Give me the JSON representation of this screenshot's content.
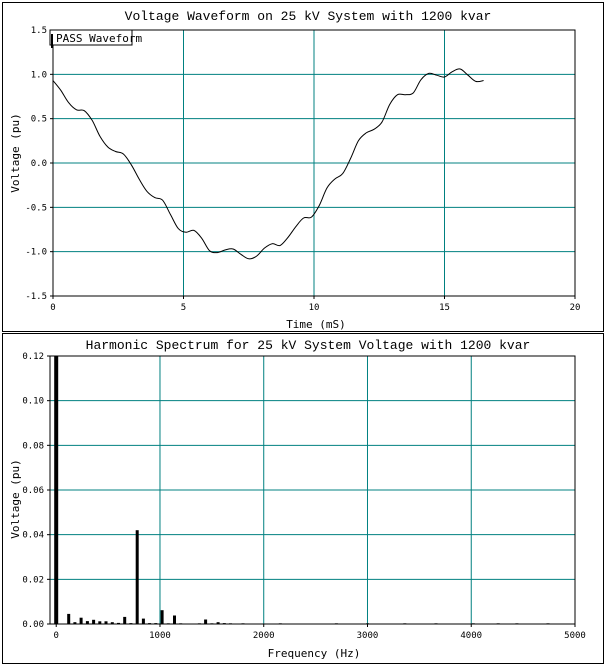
{
  "chart_data": [
    {
      "type": "line",
      "title": "Voltage Waveform on 25 kV System with 1200 kvar",
      "xlabel": "Time (mS)",
      "ylabel": "Voltage (pu)",
      "xlim": [
        0,
        20
      ],
      "ylim": [
        -1.5,
        1.5
      ],
      "xticks": [
        0,
        5,
        10,
        15,
        20
      ],
      "yticks": [
        -1.5,
        -1.0,
        -0.5,
        0.0,
        0.5,
        1.0,
        1.5
      ],
      "ytick_labels": [
        "-1.5",
        "-1.0",
        "-0.5",
        "0.0",
        "0.5",
        "1.0",
        "1.5"
      ],
      "grid": true,
      "grid_color": "#008080",
      "line_color": "#000000",
      "legend": {
        "position": "top-left",
        "entries": [
          "PASS Waveform"
        ]
      },
      "series": [
        {
          "x": [
            0,
            0.3,
            0.6,
            0.9,
            1.2,
            1.5,
            1.8,
            2.1,
            2.4,
            2.7,
            3.0,
            3.3,
            3.6,
            3.9,
            4.2,
            4.5,
            4.8,
            5.1,
            5.4,
            5.7,
            6.0,
            6.3,
            6.6,
            6.9,
            7.2,
            7.5,
            7.8,
            8.1,
            8.4,
            8.7,
            9.0,
            9.3,
            9.6,
            9.9,
            10.2,
            10.5,
            10.8,
            11.1,
            11.4,
            11.7,
            12.0,
            12.3,
            12.6,
            12.9,
            13.2,
            13.5,
            13.8,
            14.1,
            14.4,
            14.7,
            15.0,
            15.3,
            15.6,
            15.9,
            16.2,
            16.5
          ],
          "values": [
            0.93,
            0.82,
            0.68,
            0.6,
            0.59,
            0.48,
            0.3,
            0.18,
            0.13,
            0.1,
            -0.02,
            -0.18,
            -0.32,
            -0.39,
            -0.42,
            -0.58,
            -0.74,
            -0.78,
            -0.76,
            -0.85,
            -0.99,
            -1.01,
            -0.98,
            -0.97,
            -1.03,
            -1.08,
            -1.05,
            -0.96,
            -0.91,
            -0.93,
            -0.84,
            -0.72,
            -0.62,
            -0.61,
            -0.48,
            -0.28,
            -0.18,
            -0.12,
            0.05,
            0.25,
            0.34,
            0.38,
            0.46,
            0.66,
            0.77,
            0.77,
            0.79,
            0.94,
            1.01,
            0.99,
            0.97,
            1.03,
            1.06,
            0.99,
            0.92,
            0.93
          ]
        }
      ]
    },
    {
      "type": "bar",
      "title": "Harmonic Spectrum for 25 kV System Voltage with 1200 kvar",
      "xlabel": "Frequency (Hz)",
      "ylabel": "Voltage (pu)",
      "xlim": [
        -60,
        5000
      ],
      "ylim": [
        0,
        0.12
      ],
      "xticks": [
        0,
        1000,
        2000,
        3000,
        4000,
        5000
      ],
      "yticks": [
        0.0,
        0.02,
        0.04,
        0.06,
        0.08,
        0.1,
        0.12
      ],
      "ytick_labels": [
        "0.00",
        "0.02",
        "0.04",
        "0.06",
        "0.08",
        "0.10",
        "0.12"
      ],
      "grid": true,
      "grid_color": "#008080",
      "bar_color": "#000000",
      "series": [
        {
          "x": [
            0,
            60,
            120,
            180,
            240,
            300,
            360,
            420,
            480,
            540,
            600,
            660,
            720,
            780,
            840,
            900,
            960,
            1020,
            1080,
            1140,
            1200,
            1260,
            1320,
            1380,
            1440,
            1500,
            1560,
            1620,
            1680,
            1740,
            1800,
            1860,
            1920,
            1980,
            2040,
            2100,
            2160,
            2220,
            2280,
            2340,
            2400,
            2460,
            2520,
            2580,
            2640,
            2700,
            2760,
            2820,
            2880,
            2940,
            3000,
            3060,
            3120,
            3180,
            3240,
            3300,
            3360,
            3420,
            3480,
            3540,
            3600,
            3660,
            3720,
            3780,
            3840,
            3900,
            3960,
            4020,
            4080,
            4140,
            4200,
            4260,
            4320,
            4380,
            4440,
            4500,
            4560,
            4620,
            4680,
            4740,
            4800,
            4860,
            4920
          ],
          "values": [
            0.12,
            0.0,
            0.0045,
            0.0008,
            0.0028,
            0.0013,
            0.0019,
            0.0012,
            0.0012,
            0.0008,
            0.0005,
            0.0032,
            0.0004,
            0.042,
            0.0024,
            0.0004,
            0.0004,
            0.0062,
            0.0003,
            0.0038,
            0.0003,
            0.0002,
            0.0002,
            0.0003,
            0.002,
            0.0003,
            0.0008,
            0.0004,
            0.0003,
            0.0002,
            0.0003,
            0.0002,
            0.0002,
            0.0002,
            0.0002,
            0.0002,
            0.0003,
            0.0002,
            0.0002,
            0.0002,
            0.0002,
            0.0002,
            0.0002,
            0.0002,
            0.0002,
            0.0003,
            0.0002,
            0.0002,
            0.0002,
            0.0002,
            0.0003,
            0.0002,
            0.0002,
            0.0002,
            0.0002,
            0.0002,
            0.0003,
            0.0002,
            0.0002,
            0.0002,
            0.0002,
            0.0003,
            0.0002,
            0.0002,
            0.0002,
            0.0002,
            0.0002,
            0.0003,
            0.0002,
            0.0002,
            0.0002,
            0.0003,
            0.0002,
            0.0002,
            0.0003,
            0.0002,
            0.0002,
            0.0002,
            0.0002,
            0.0003,
            0.0002,
            0.0002,
            0.0002
          ]
        }
      ]
    }
  ]
}
